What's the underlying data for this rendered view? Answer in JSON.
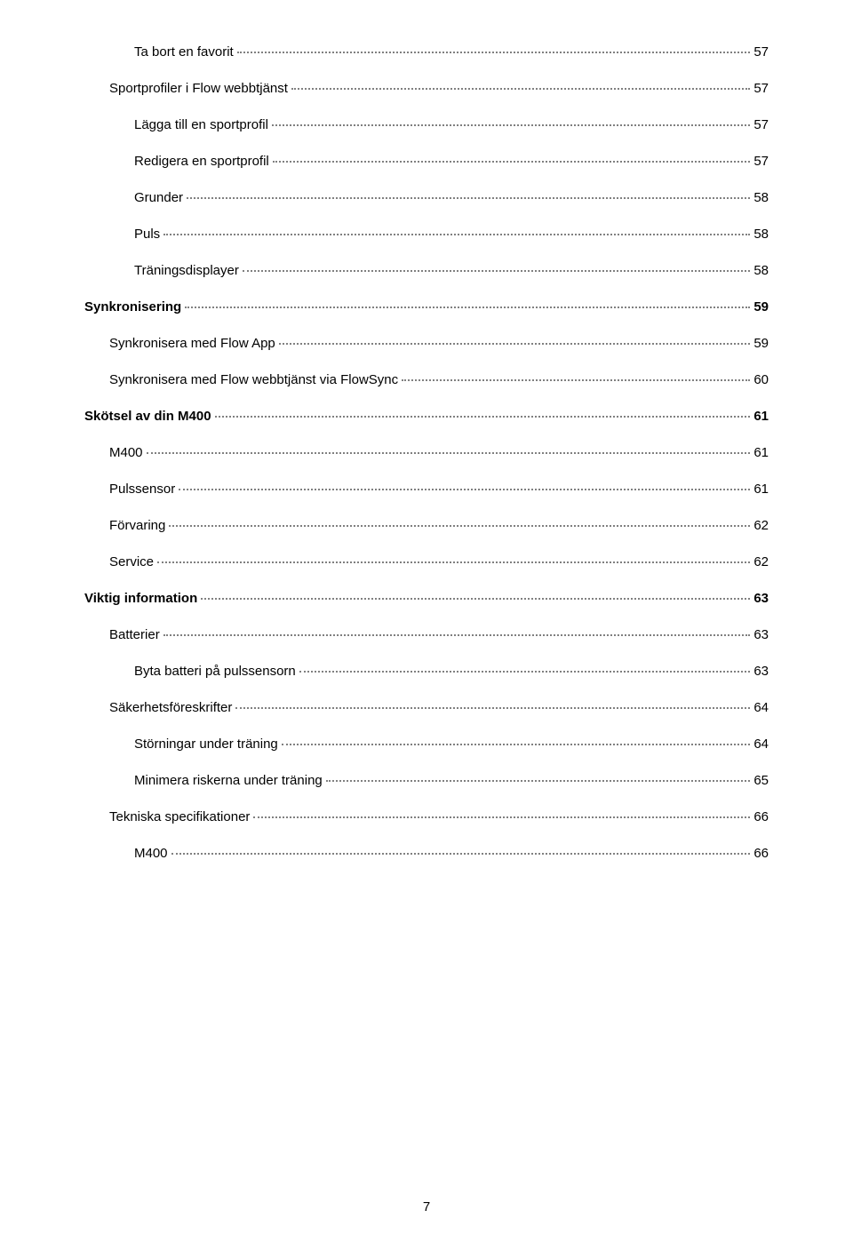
{
  "toc": {
    "entries": [
      {
        "label": "Ta bort en favorit",
        "page": "57",
        "indent": 3,
        "bold": false
      },
      {
        "label": "Sportprofiler i Flow webbtjänst",
        "page": "57",
        "indent": 2,
        "bold": false
      },
      {
        "label": "Lägga till en sportprofil",
        "page": "57",
        "indent": 3,
        "bold": false
      },
      {
        "label": "Redigera en sportprofil",
        "page": "57",
        "indent": 3,
        "bold": false
      },
      {
        "label": "Grunder",
        "page": "58",
        "indent": 3,
        "bold": false
      },
      {
        "label": "Puls",
        "page": "58",
        "indent": 3,
        "bold": false
      },
      {
        "label": "Träningsdisplayer",
        "page": "58",
        "indent": 3,
        "bold": false
      },
      {
        "label": "Synkronisering",
        "page": "59",
        "indent": 0,
        "bold": true
      },
      {
        "label": "Synkronisera med Flow App",
        "page": "59",
        "indent": 2,
        "bold": false
      },
      {
        "label": "Synkronisera med Flow webbtjänst via FlowSync",
        "page": "60",
        "indent": 2,
        "bold": false
      },
      {
        "label": "Skötsel av din M400",
        "page": "61",
        "indent": 0,
        "bold": true
      },
      {
        "label": "M400",
        "page": "61",
        "indent": 2,
        "bold": false
      },
      {
        "label": "Pulssensor",
        "page": "61",
        "indent": 2,
        "bold": false
      },
      {
        "label": "Förvaring",
        "page": "62",
        "indent": 2,
        "bold": false
      },
      {
        "label": "Service",
        "page": "62",
        "indent": 2,
        "bold": false
      },
      {
        "label": "Viktig information",
        "page": "63",
        "indent": 0,
        "bold": true
      },
      {
        "label": "Batterier",
        "page": "63",
        "indent": 2,
        "bold": false
      },
      {
        "label": "Byta batteri på pulssensorn",
        "page": "63",
        "indent": 3,
        "bold": false
      },
      {
        "label": "Säkerhetsföreskrifter",
        "page": "64",
        "indent": 2,
        "bold": false
      },
      {
        "label": "Störningar under träning",
        "page": "64",
        "indent": 3,
        "bold": false
      },
      {
        "label": "Minimera riskerna under träning",
        "page": "65",
        "indent": 3,
        "bold": false
      },
      {
        "label": "Tekniska specifikationer",
        "page": "66",
        "indent": 2,
        "bold": false
      },
      {
        "label": "M400",
        "page": "66",
        "indent": 3,
        "bold": false
      }
    ]
  },
  "page_number": "7"
}
